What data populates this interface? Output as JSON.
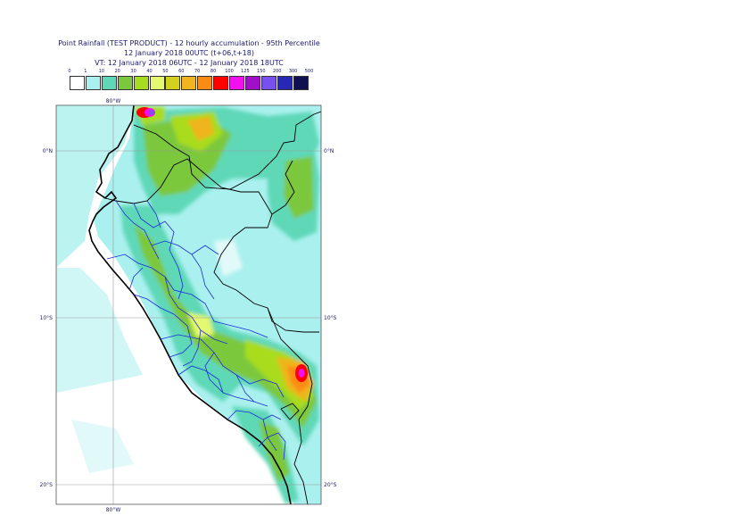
{
  "title": {
    "line1": "Point Rainfall (TEST PRODUCT) - 12 hourly accumulation - 95th Percentile",
    "line2": "12 January 2018 00UTC (t+06,t+18)",
    "line3": "VT: 12 January 2018 06UTC - 12 January 2018 18UTC"
  },
  "legend": {
    "thresholds": [
      "0",
      "1",
      "10",
      "20",
      "30",
      "40",
      "50",
      "60",
      "70",
      "80",
      "100",
      "125",
      "150",
      "200",
      "300",
      "500"
    ],
    "colors": [
      "#ffffff",
      "#aaf0ee",
      "#5fd8b8",
      "#7cc83c",
      "#a8dc1e",
      "#e4f870",
      "#d2d21e",
      "#f0b41e",
      "#fa8c14",
      "#ff0000",
      "#f010f0",
      "#a010c8",
      "#7850f0",
      "#2828b4",
      "#101050"
    ]
  },
  "axes": {
    "lon_top": "80°W",
    "lon_bottom": "80°W",
    "lat_left": [
      "0°N",
      "10°S",
      "20°S"
    ],
    "lat_right": [
      "0°N",
      "10°S",
      "20°S"
    ]
  }
}
